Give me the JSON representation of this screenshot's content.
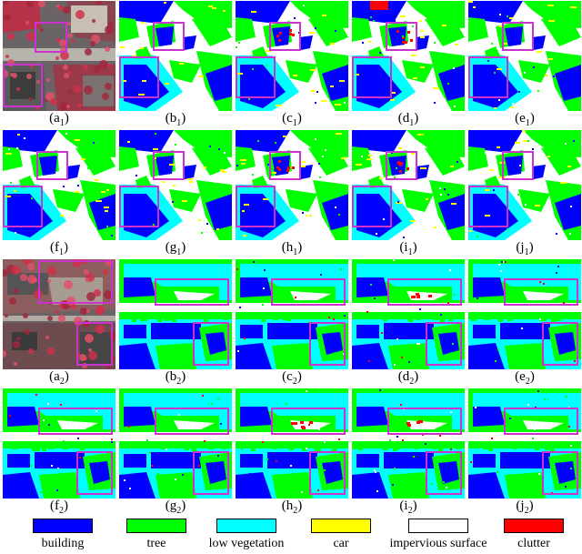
{
  "panels": [
    {
      "letter": "a",
      "sub": "1",
      "kind": "image",
      "variant": 1
    },
    {
      "letter": "b",
      "sub": "1",
      "kind": "seg",
      "variant": 1
    },
    {
      "letter": "c",
      "sub": "1",
      "kind": "seg",
      "variant": 1
    },
    {
      "letter": "d",
      "sub": "1",
      "kind": "seg",
      "variant": 1
    },
    {
      "letter": "e",
      "sub": "1",
      "kind": "seg",
      "variant": 1
    },
    {
      "letter": "f",
      "sub": "1",
      "kind": "seg",
      "variant": 1
    },
    {
      "letter": "g",
      "sub": "1",
      "kind": "seg",
      "variant": 1
    },
    {
      "letter": "h",
      "sub": "1",
      "kind": "seg",
      "variant": 1
    },
    {
      "letter": "i",
      "sub": "1",
      "kind": "seg",
      "variant": 1
    },
    {
      "letter": "j",
      "sub": "1",
      "kind": "seg",
      "variant": 1
    },
    {
      "letter": "a",
      "sub": "2",
      "kind": "image",
      "variant": 2
    },
    {
      "letter": "b",
      "sub": "2",
      "kind": "seg",
      "variant": 2
    },
    {
      "letter": "c",
      "sub": "2",
      "kind": "seg",
      "variant": 2
    },
    {
      "letter": "d",
      "sub": "2",
      "kind": "seg",
      "variant": 2
    },
    {
      "letter": "e",
      "sub": "2",
      "kind": "seg",
      "variant": 2
    },
    {
      "letter": "f",
      "sub": "2",
      "kind": "seg",
      "variant": 2
    },
    {
      "letter": "g",
      "sub": "2",
      "kind": "seg",
      "variant": 2
    },
    {
      "letter": "h",
      "sub": "2",
      "kind": "seg",
      "variant": 2
    },
    {
      "letter": "i",
      "sub": "2",
      "kind": "seg",
      "variant": 2
    },
    {
      "letter": "j",
      "sub": "2",
      "kind": "seg",
      "variant": 2
    }
  ],
  "legend": [
    {
      "label": "building",
      "color": "#0000ff"
    },
    {
      "label": "tree",
      "color": "#00ff00"
    },
    {
      "label": "low vegetation",
      "color": "#00ffff"
    },
    {
      "label": "car",
      "color": "#ffff00"
    },
    {
      "label": "impervious surface",
      "color": "#ffffff"
    },
    {
      "label": "clutter",
      "color": "#ff0000"
    }
  ],
  "highlight_color": "#cc33cc"
}
